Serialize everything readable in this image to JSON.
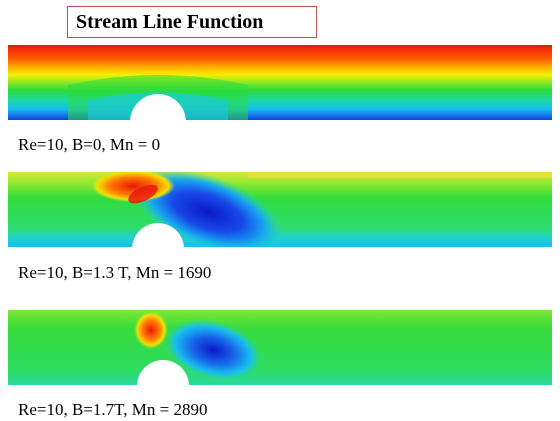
{
  "title": "Stream Line Function",
  "panels": [
    {
      "caption": "Re=10, B=0, Mn = 0"
    },
    {
      "caption": "Re=10, B=1.3 T,  Mn = 1690"
    },
    {
      "caption": "Re=10, B=1.7T,  Mn = 2890"
    }
  ],
  "colors": {
    "title_border": "#c0504d",
    "red": "#e8180c",
    "orange": "#ff8a00",
    "yellow": "#f4f000",
    "green": "#2edc3a",
    "cyan": "#18d8f0",
    "blue": "#1040e0",
    "dark_blue": "#0a1ac8"
  }
}
